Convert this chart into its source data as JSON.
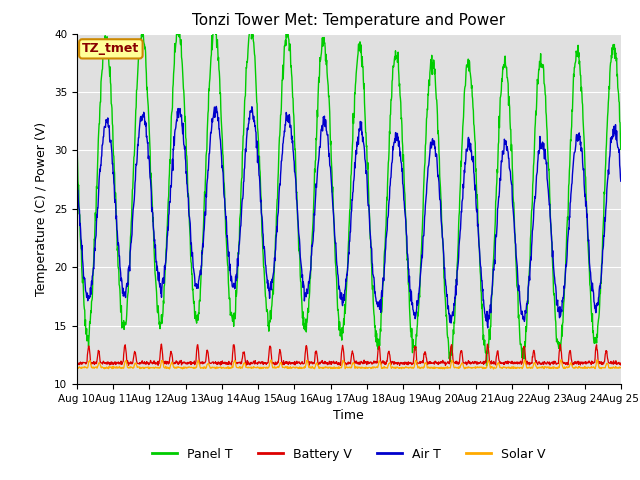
{
  "title": "Tonzi Tower Met: Temperature and Power",
  "xlabel": "Time",
  "ylabel": "Temperature (C) / Power (V)",
  "ylim": [
    10,
    40
  ],
  "xtick_labels": [
    "Aug 10",
    "Aug 11",
    "Aug 12",
    "Aug 13",
    "Aug 14",
    "Aug 15",
    "Aug 16",
    "Aug 17",
    "Aug 18",
    "Aug 19",
    "Aug 20",
    "Aug 21",
    "Aug 22",
    "Aug 23",
    "Aug 24",
    "Aug 25"
  ],
  "panel_t_color": "#00cc00",
  "battery_v_color": "#dd0000",
  "air_t_color": "#0000cc",
  "solar_v_color": "#ffaa00",
  "bg_color": "#e0e0e0",
  "annotation_text": "TZ_tmet",
  "annotation_bg": "#ffff99",
  "annotation_border": "#cc8800",
  "annotation_text_color": "#880000",
  "title_fontsize": 11,
  "label_fontsize": 9,
  "tick_fontsize": 7.5,
  "legend_fontsize": 9
}
